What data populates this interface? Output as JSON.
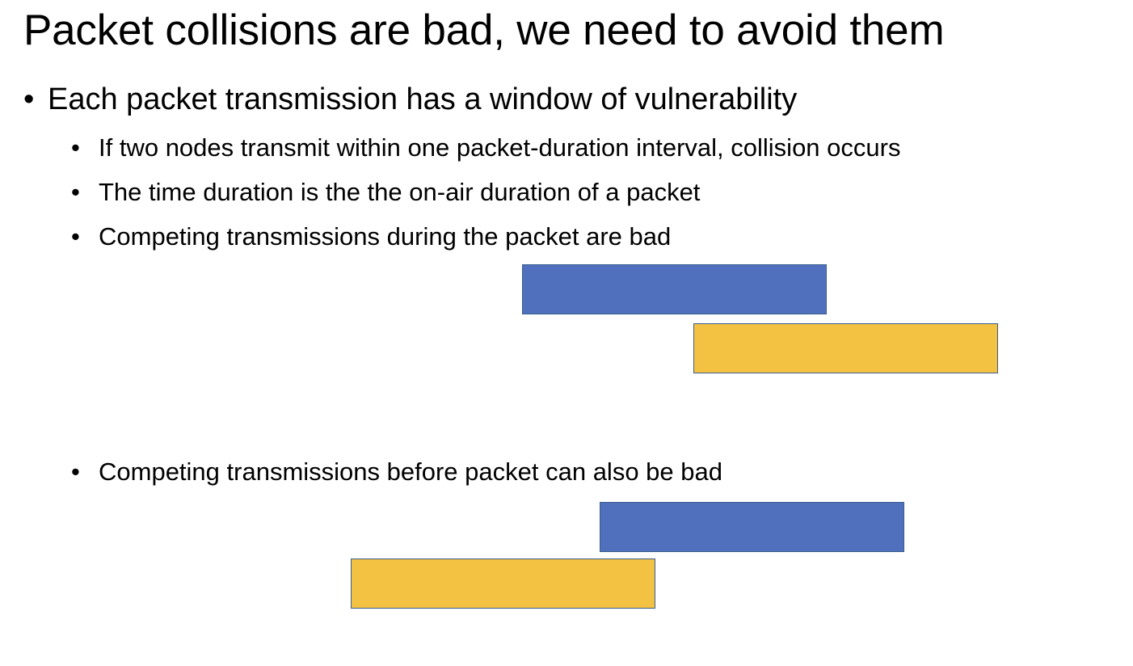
{
  "slide": {
    "title": "Packet collisions are bad, we need to avoid them",
    "bullet_glyph": "•",
    "bullets": [
      {
        "text": "Each packet transmission has a window of vulnerability"
      },
      {
        "text": "If two nodes transmit within one packet-duration interval, collision occurs"
      },
      {
        "text": "The time duration is the the on-air duration of a packet"
      },
      {
        "text": "Competing transmissions during the packet are bad"
      },
      {
        "text": "Competing transmissions before packet can also be bad"
      }
    ]
  },
  "diagram": {
    "colors": {
      "packet": "#5070BE",
      "competing": "#F3C242",
      "outline": "#3A5E8C"
    },
    "scenarios": [
      {
        "description_ref": "during",
        "competing_offset_fraction": 0.56
      },
      {
        "description_ref": "before",
        "competing_offset_fraction": -0.82
      }
    ]
  }
}
